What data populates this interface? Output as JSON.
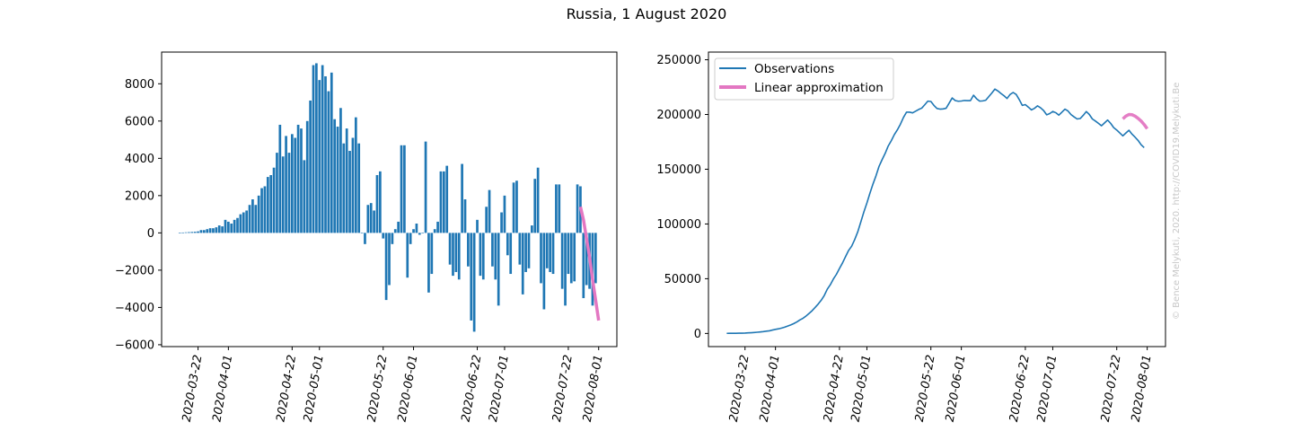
{
  "figure": {
    "title": "Russia, 1 August 2020",
    "watermark": "© Bence Melykuti, 2020. http://COVID19.Melykuti.Be"
  },
  "colors": {
    "observations": "#1f77b4",
    "approximation": "#e377c2"
  },
  "chart_data": [
    {
      "type": "bar",
      "title": "",
      "xlabel": "",
      "ylabel": "",
      "x_start": "2020-03-16",
      "x_end": "2020-08-01",
      "xlim": [
        "2020-03-10",
        "2020-08-07"
      ],
      "ylim": [
        -6100,
        9700
      ],
      "yticks": [
        -6000,
        -4000,
        -2000,
        0,
        2000,
        4000,
        6000,
        8000
      ],
      "xticks": [
        "2020-03-22",
        "2020-04-01",
        "2020-04-22",
        "2020-05-01",
        "2020-05-22",
        "2020-06-01",
        "2020-06-22",
        "2020-07-01",
        "2020-07-22",
        "2020-08-01"
      ],
      "values": [
        10,
        20,
        30,
        40,
        50,
        60,
        80,
        150,
        150,
        200,
        250,
        250,
        300,
        400,
        350,
        700,
        600,
        500,
        700,
        800,
        1000,
        1100,
        1200,
        1500,
        1800,
        1500,
        2000,
        2400,
        2500,
        3000,
        3100,
        3500,
        4300,
        5800,
        4100,
        5200,
        4300,
        5300,
        5100,
        5800,
        5600,
        3900,
        6000,
        7100,
        9000,
        9100,
        8200,
        9000,
        8400,
        7600,
        8600,
        6100,
        5700,
        6700,
        4800,
        5600,
        4400,
        5100,
        6200,
        4800,
        0,
        -600,
        1500,
        1600,
        1200,
        3100,
        3300,
        -300,
        -3600,
        -2800,
        -600,
        200,
        600,
        4700,
        4700,
        -2400,
        -600,
        200,
        500,
        -100,
        0,
        4900,
        -3200,
        -2200,
        200,
        600,
        3300,
        3300,
        3600,
        -1700,
        -2300,
        -2100,
        -2500,
        3700,
        1800,
        -1800,
        -4700,
        -5300,
        700,
        -2300,
        -2500,
        1400,
        2300,
        -1800,
        -2500,
        -3900,
        1100,
        2000,
        -1200,
        -2200,
        2700,
        2800,
        -1700,
        -3300,
        -2100,
        -1900,
        400,
        2900,
        3500,
        -2700,
        -4100,
        -1900,
        -2100,
        -2200,
        2600,
        2600,
        -3000,
        -3900,
        -2200,
        -2700,
        -2600,
        2600,
        2500,
        -3500,
        -2800,
        -3000,
        -3900,
        -2700
      ],
      "approximation": {
        "name": "Linear approximation",
        "x": [
          "2020-07-26",
          "2020-07-27",
          "2020-07-28",
          "2020-07-29",
          "2020-07-30",
          "2020-07-31",
          "2020-08-01"
        ],
        "y": [
          1400,
          700,
          -300,
          -1300,
          -2500,
          -3600,
          -4700
        ]
      }
    },
    {
      "type": "line",
      "title": "",
      "xlabel": "",
      "ylabel": "",
      "x_start": "2020-03-16",
      "x_end": "2020-08-01",
      "xlim": [
        "2020-03-10",
        "2020-08-07"
      ],
      "ylim": [
        -12000,
        257000
      ],
      "yticks": [
        0,
        50000,
        100000,
        150000,
        200000,
        250000
      ],
      "xticks": [
        "2020-03-22",
        "2020-04-01",
        "2020-04-22",
        "2020-05-01",
        "2020-05-22",
        "2020-06-01",
        "2020-06-22",
        "2020-07-01",
        "2020-07-22",
        "2020-08-01"
      ],
      "legend": {
        "placement": "upper-left"
      },
      "series": [
        {
          "name": "Observations",
          "values": [
            100,
            120,
            140,
            180,
            230,
            290,
            370,
            520,
            670,
            870,
            1120,
            1370,
            1670,
            2070,
            2420,
            3120,
            3720,
            4220,
            4920,
            5720,
            6720,
            7820,
            9020,
            10520,
            12320,
            13820,
            15820,
            18220,
            20720,
            23720,
            26820,
            30320,
            34620,
            40420,
            44520,
            49720,
            54020,
            59320,
            64420,
            70220,
            75820,
            79720,
            85720,
            92800,
            101800,
            110900,
            119100,
            128100,
            136500,
            144100,
            152700,
            158800,
            164500,
            171200,
            176000,
            181600,
            186000,
            191100,
            197300,
            202100,
            202100,
            201500,
            203000,
            204600,
            205800,
            208900,
            212200,
            211900,
            208300,
            205500,
            204900,
            205100,
            205700,
            210400,
            215100,
            212700,
            212100,
            212300,
            212800,
            212700,
            212700,
            217600,
            214400,
            212200,
            212400,
            213000,
            216300,
            219600,
            223200,
            221500,
            219200,
            217100,
            214600,
            218300,
            220100,
            218300,
            213600,
            208300,
            209000,
            206700,
            204200,
            205600,
            207900,
            206100,
            203600,
            199700,
            200800,
            202800,
            201600,
            199400,
            202100,
            204900,
            203200,
            199900,
            197800,
            195900,
            196300,
            199200,
            202700,
            200000,
            195900,
            194000,
            191900,
            189700,
            192300,
            194900,
            191900,
            188000,
            185800,
            183100,
            180500,
            183100,
            185600,
            182100,
            179300,
            176300,
            172400,
            169700
          ]
        }
      ],
      "approximation": {
        "name": "Linear approximation",
        "x": [
          "2020-07-24",
          "2020-07-25",
          "2020-07-26",
          "2020-07-27",
          "2020-07-28",
          "2020-07-29",
          "2020-07-30",
          "2020-07-31",
          "2020-08-01"
        ],
        "y": [
          196000,
          198500,
          200000,
          199800,
          198500,
          196500,
          194000,
          190800,
          187000
        ]
      }
    }
  ]
}
